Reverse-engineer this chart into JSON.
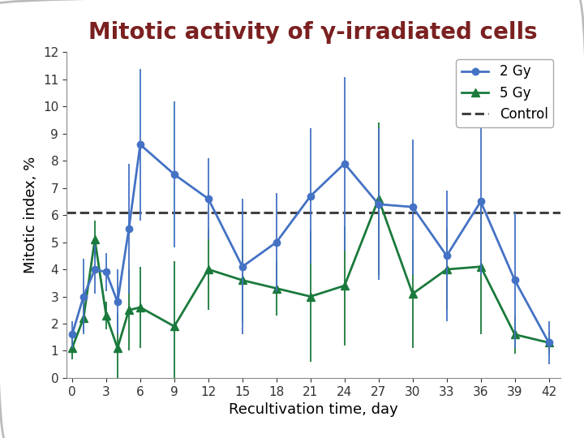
{
  "title": "Mitotic activity of γ-irradiated cells",
  "xlabel": "Recultivation time, day",
  "ylabel": "Mitotic index, %",
  "control_value": 6.1,
  "x": [
    0,
    1,
    2,
    3,
    4,
    5,
    6,
    9,
    12,
    15,
    18,
    21,
    24,
    27,
    30,
    33,
    36,
    39,
    42
  ],
  "gy2_y": [
    1.6,
    3.0,
    4.0,
    3.9,
    2.8,
    5.5,
    8.6,
    7.5,
    6.6,
    4.1,
    5.0,
    6.7,
    7.9,
    6.4,
    6.3,
    4.5,
    6.5,
    3.6,
    1.3
  ],
  "gy2_err": [
    0.5,
    1.4,
    0.9,
    0.7,
    1.2,
    2.4,
    2.8,
    2.7,
    1.5,
    2.5,
    1.8,
    2.5,
    3.2,
    2.8,
    2.5,
    2.4,
    2.7,
    2.5,
    0.8
  ],
  "gy5_y": [
    1.1,
    2.2,
    5.1,
    2.3,
    1.1,
    2.5,
    2.6,
    1.9,
    4.0,
    3.6,
    3.3,
    3.0,
    3.4,
    6.6,
    3.1,
    4.0,
    4.1,
    1.6,
    1.3
  ],
  "gy5_err": [
    0.4,
    0.5,
    0.7,
    0.5,
    1.3,
    1.5,
    1.5,
    2.4,
    1.5,
    1.5,
    1.0,
    2.4,
    2.2,
    2.8,
    2.0,
    1.5,
    2.5,
    0.7,
    0.4
  ],
  "gy2_color": "#4472c4",
  "gy5_color": "#1a7a3c",
  "control_color": "#404040",
  "title_color": "#7B2020",
  "ylim": [
    0,
    12
  ],
  "yticks": [
    0,
    1,
    2,
    3,
    4,
    5,
    6,
    7,
    8,
    9,
    10,
    11,
    12
  ],
  "xticks": [
    0,
    3,
    6,
    9,
    12,
    15,
    18,
    21,
    24,
    27,
    30,
    33,
    36,
    39,
    42
  ],
  "legend_labels": [
    "2 Gy",
    "5 Gy",
    "Control"
  ],
  "title_fontsize": 20,
  "axis_fontsize": 13,
  "tick_fontsize": 11,
  "legend_fontsize": 12
}
